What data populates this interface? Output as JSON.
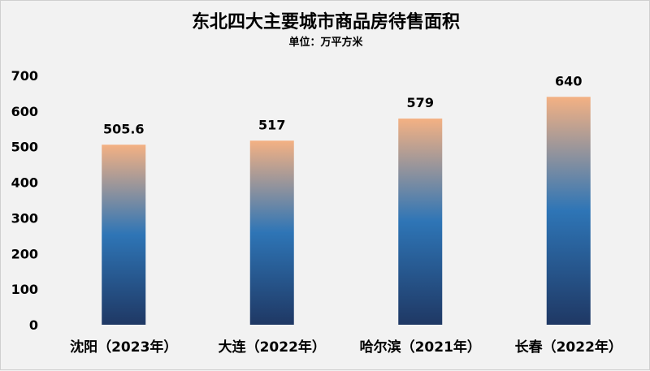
{
  "chart_data": {
    "type": "bar",
    "title": "东北四大主要城市商品房待售面积",
    "subtitle": "单位：万平方米",
    "categories": [
      "沈阳（2023年）",
      "大连（2022年）",
      "哈尔滨（2021年）",
      "长春（2022年）"
    ],
    "values": [
      505.6,
      517,
      579,
      640
    ],
    "value_labels": [
      "505.6",
      "517",
      "579",
      "640"
    ],
    "ylim": [
      0,
      700
    ],
    "yticks": [
      0,
      100,
      200,
      300,
      400,
      500,
      600,
      700
    ],
    "grid": false,
    "legend": "none",
    "colors": {
      "bar_top": "#f4b183",
      "bar_mid": "#2e75b6",
      "bar_bottom": "#1f3864",
      "background": "#f2f2f2"
    }
  }
}
